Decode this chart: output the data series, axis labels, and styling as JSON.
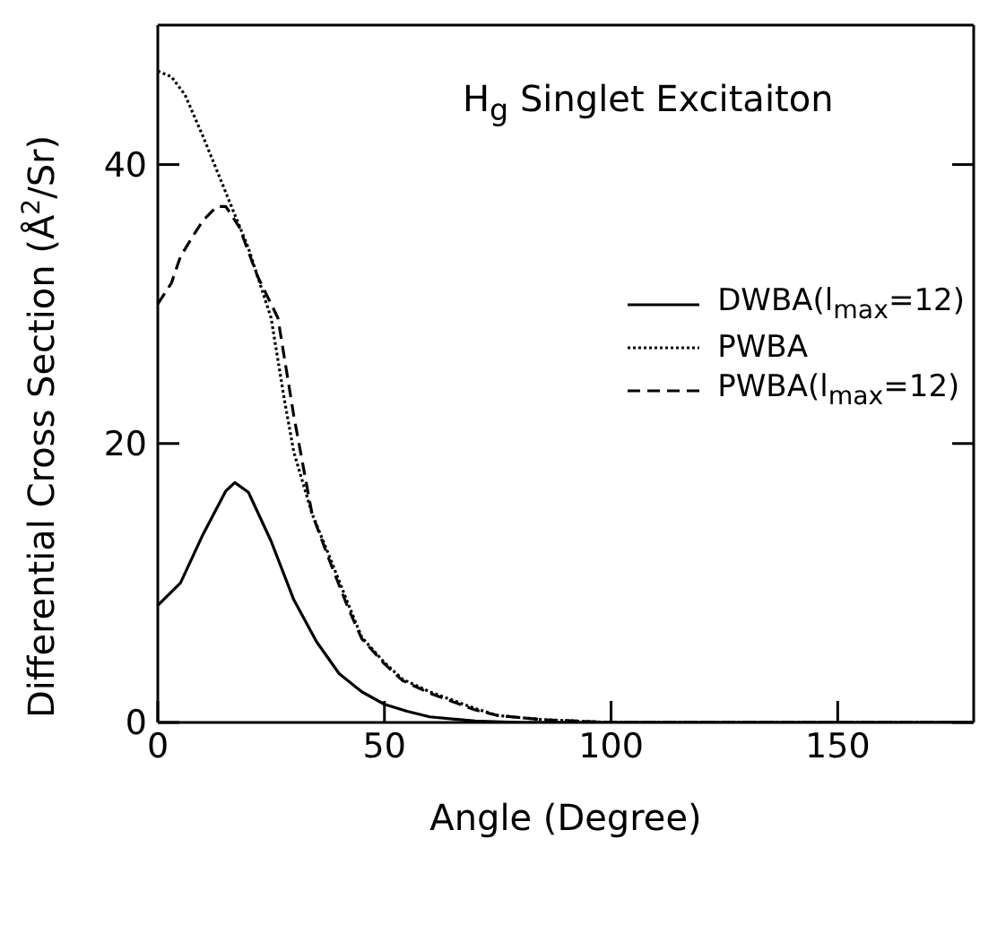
{
  "chart_data": {
    "type": "line",
    "title": "H$_{g}$ Singlet Excitaiton",
    "xlabel": "Angle (Degree)",
    "ylabel": "Differential Cross Section (Å$^{2}$/Sr)",
    "xlim": [
      0,
      180
    ],
    "xticks": [
      0,
      50,
      100,
      150
    ],
    "ylim": [
      0,
      50
    ],
    "yticks": [
      0,
      20,
      40
    ],
    "legend": "top right",
    "series": [
      {
        "name": "DWBA(l$_{max}$=12)",
        "color": "#000000",
        "line_style": "solid",
        "x": [
          0,
          5,
          10,
          15,
          17,
          20,
          25,
          30,
          35,
          40,
          45,
          50,
          55,
          60,
          70,
          80,
          100,
          120,
          150,
          180
        ],
        "values": [
          8.4,
          10,
          13.5,
          16.6,
          17.2,
          16.5,
          13,
          8.8,
          5.8,
          3.5,
          2.2,
          1.3,
          0.8,
          0.4,
          0.1,
          0,
          0,
          0,
          0,
          0
        ]
      },
      {
        "name": "PWBA",
        "color": "#000000",
        "line_style": "dotted",
        "x": [
          0,
          3,
          6,
          10,
          15,
          20,
          25,
          28,
          30,
          34,
          38,
          42,
          45,
          50,
          54,
          60,
          65,
          70,
          75,
          85,
          100,
          120,
          150,
          180
        ],
        "values": [
          46.7,
          46.3,
          45,
          42,
          38,
          34,
          29,
          23,
          19.4,
          15,
          11.8,
          8.5,
          6.1,
          4.3,
          3.1,
          2.2,
          1.6,
          1,
          0.5,
          0.2,
          0,
          0,
          0,
          0
        ]
      },
      {
        "name": "PWBA(l$_{max}$=12)",
        "color": "#000000",
        "line_style": "dashed",
        "x": [
          0,
          3,
          5,
          8,
          10,
          13,
          15,
          18,
          22,
          26.5,
          30,
          34,
          38,
          42,
          45,
          50,
          54,
          60,
          65,
          70,
          75,
          85,
          100,
          120,
          150,
          180
        ],
        "values": [
          30,
          31.5,
          33.4,
          35,
          36,
          37,
          37,
          35.5,
          32,
          29,
          22,
          15,
          11.5,
          8.2,
          6,
          4.2,
          3,
          2.1,
          1.5,
          0.9,
          0.5,
          0.2,
          0,
          0,
          0,
          0
        ]
      }
    ]
  }
}
